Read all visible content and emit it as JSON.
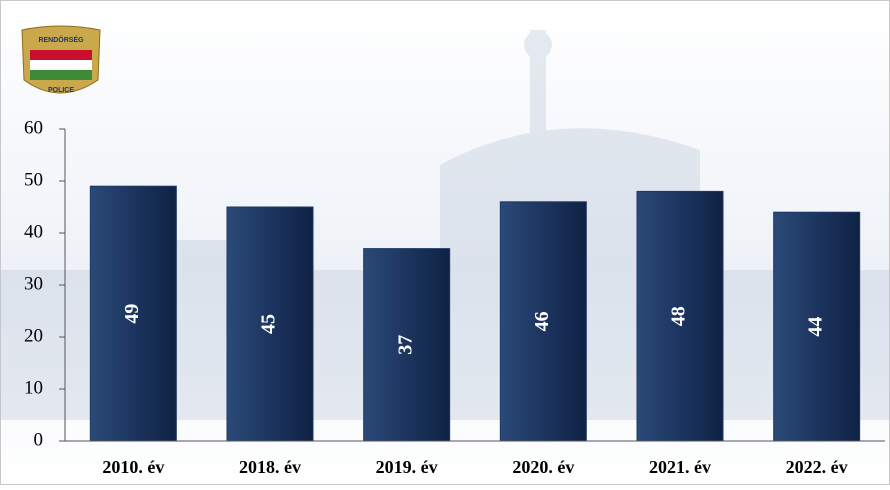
{
  "logo": {
    "top": "RENDŐRSÉG",
    "bottom": "POLICE"
  },
  "chart_data": {
    "type": "bar",
    "categories": [
      "2010. év",
      "2018. év",
      "2019. év",
      "2020. év",
      "2021. év",
      "2022. év"
    ],
    "values": [
      49,
      45,
      37,
      46,
      48,
      44
    ],
    "color": "#1f3864",
    "ylim": [
      0,
      60
    ],
    "yticks": [
      0,
      10,
      20,
      30,
      40,
      50,
      60
    ],
    "grid": false
  }
}
